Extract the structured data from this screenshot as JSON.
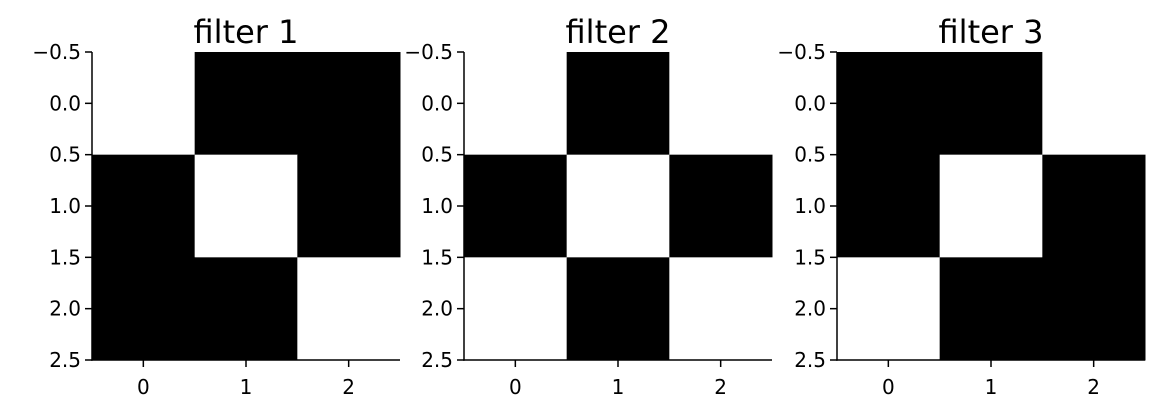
{
  "chart_data": [
    {
      "type": "heatmap",
      "title": "filter 1",
      "values": [
        [
          1,
          0,
          0
        ],
        [
          0,
          1,
          0
        ],
        [
          0,
          0,
          1
        ]
      ],
      "colors": [
        "#000000",
        "#ffffff"
      ],
      "vlim": [
        0,
        1
      ],
      "xlim": [
        -0.5,
        2.5
      ],
      "xticks": [
        0,
        1,
        2
      ],
      "ylim": [
        2.5,
        -0.5
      ],
      "yticks": [
        {
          "value": -0.5,
          "label": "−0.5"
        },
        {
          "value": 0,
          "label": "0.0"
        },
        {
          "value": 0.5,
          "label": "0.5"
        },
        {
          "value": 1,
          "label": "1.0"
        },
        {
          "value": 1.5,
          "label": "1.5"
        },
        {
          "value": 2,
          "label": "2.0"
        },
        {
          "value": 2.5,
          "label": "2.5"
        }
      ]
    },
    {
      "type": "heatmap",
      "title": "filter 2",
      "values": [
        [
          1,
          0,
          1
        ],
        [
          0,
          1,
          0
        ],
        [
          1,
          0,
          1
        ]
      ],
      "colors": [
        "#000000",
        "#ffffff"
      ],
      "vlim": [
        0,
        1
      ],
      "xlim": [
        -0.5,
        2.5
      ],
      "xticks": [
        0,
        1,
        2
      ],
      "ylim": [
        2.5,
        -0.5
      ],
      "yticks": [
        {
          "value": -0.5,
          "label": "−0.5"
        },
        {
          "value": 0,
          "label": "0.0"
        },
        {
          "value": 0.5,
          "label": "0.5"
        },
        {
          "value": 1,
          "label": "1.0"
        },
        {
          "value": 1.5,
          "label": "1.5"
        },
        {
          "value": 2,
          "label": "2.0"
        },
        {
          "value": 2.5,
          "label": "2.5"
        }
      ]
    },
    {
      "type": "heatmap",
      "title": "filter 3",
      "values": [
        [
          0,
          0,
          1
        ],
        [
          0,
          1,
          0
        ],
        [
          1,
          0,
          0
        ]
      ],
      "colors": [
        "#000000",
        "#ffffff"
      ],
      "vlim": [
        0,
        1
      ],
      "xlim": [
        -0.5,
        2.5
      ],
      "xticks": [
        0,
        1,
        2
      ],
      "ylim": [
        2.5,
        -0.5
      ],
      "yticks": [
        {
          "value": -0.5,
          "label": "−0.5"
        },
        {
          "value": 0,
          "label": "0.0"
        },
        {
          "value": 0.5,
          "label": "0.5"
        },
        {
          "value": 1,
          "label": "1.0"
        },
        {
          "value": 1.5,
          "label": "1.5"
        },
        {
          "value": 2,
          "label": "2.0"
        },
        {
          "value": 2.5,
          "label": "2.5"
        }
      ]
    }
  ]
}
